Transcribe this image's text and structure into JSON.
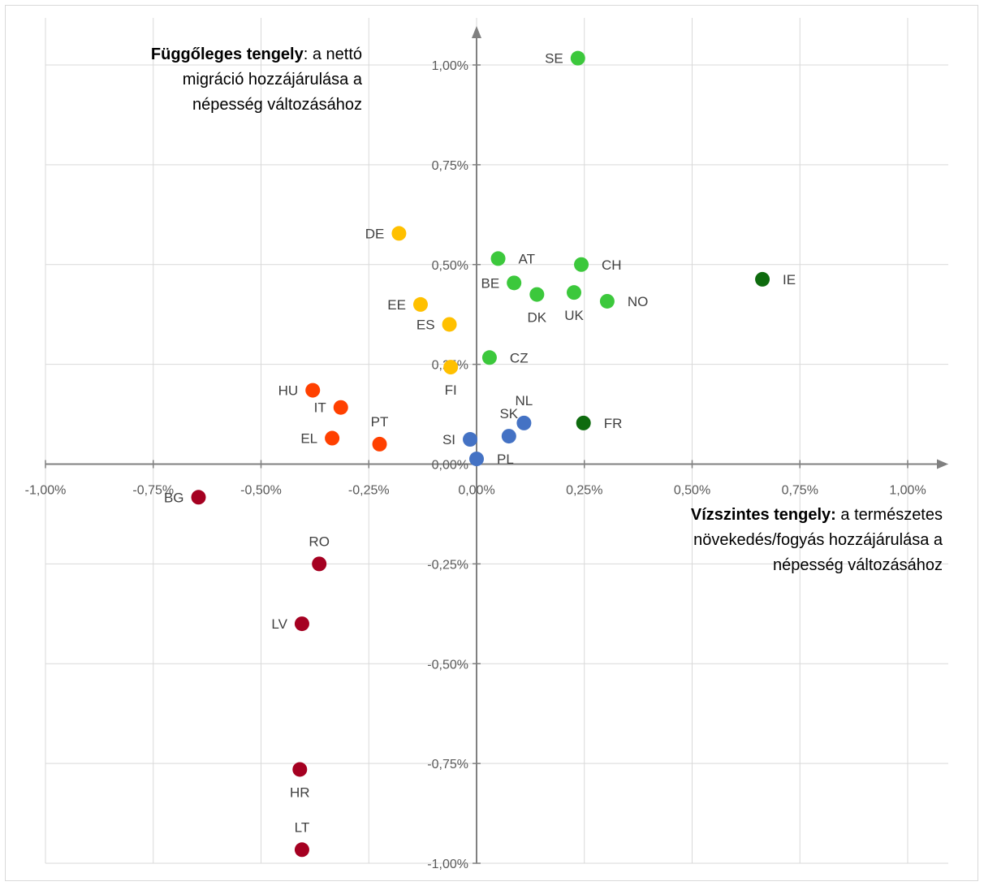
{
  "chart_data": {
    "type": "scatter",
    "xlim": [
      -1.0,
      1.0
    ],
    "ylim": [
      -1.0,
      1.0
    ],
    "grid": true,
    "x_ticks": [
      {
        "value": -1.0,
        "label": "-1,00%"
      },
      {
        "value": -0.75,
        "label": "-0,75%"
      },
      {
        "value": -0.5,
        "label": "-0,50%"
      },
      {
        "value": -0.25,
        "label": "-0,25%"
      },
      {
        "value": 0.0,
        "label": "0,00%"
      },
      {
        "value": 0.25,
        "label": "0,25%"
      },
      {
        "value": 0.5,
        "label": "0,50%"
      },
      {
        "value": 0.75,
        "label": "0,75%"
      },
      {
        "value": 1.0,
        "label": "1,00%"
      }
    ],
    "y_ticks": [
      {
        "value": 1.0,
        "label": "1,00%"
      },
      {
        "value": 0.75,
        "label": "0,75%"
      },
      {
        "value": 0.5,
        "label": "0,50%"
      },
      {
        "value": 0.25,
        "label": "0,25%"
      },
      {
        "value": 0.0,
        "label": "0,00%"
      },
      {
        "value": -0.25,
        "label": "-0,25%"
      },
      {
        "value": -0.5,
        "label": "-0,50%"
      },
      {
        "value": -0.75,
        "label": "-0,75%"
      },
      {
        "value": -1.0,
        "label": "-1,00%"
      }
    ],
    "annotations": {
      "y_axis": {
        "lines": [
          [
            {
              "text": "Függőleges tengely",
              "bold": true
            },
            {
              "text": ": a nettó",
              "bold": false
            }
          ],
          [
            {
              "text": "migráció hozzájárulása a",
              "bold": false
            }
          ],
          [
            {
              "text": "népesség változásához",
              "bold": false
            }
          ]
        ]
      },
      "x_axis": {
        "lines": [
          [
            {
              "text": "Vízszintes tengely:",
              "bold": true
            },
            {
              "text": " a természetes",
              "bold": false
            }
          ],
          [
            {
              "text": "növekedés/fogyás hozzájárulása a",
              "bold": false
            }
          ],
          [
            {
              "text": "népesség változásához",
              "bold": false
            }
          ]
        ]
      }
    },
    "points": [
      {
        "label": "SE",
        "x": 0.235,
        "y": 1.017,
        "color": "#3cc83c",
        "label_pos": "left"
      },
      {
        "label": "AT",
        "x": 0.05,
        "y": 0.515,
        "color": "#3cc83c",
        "label_pos": "right"
      },
      {
        "label": "CH",
        "x": 0.243,
        "y": 0.5,
        "color": "#3cc83c",
        "label_pos": "right"
      },
      {
        "label": "BE",
        "x": 0.087,
        "y": 0.454,
        "color": "#3cc83c",
        "label_pos": "left"
      },
      {
        "label": "DK",
        "x": 0.14,
        "y": 0.425,
        "color": "#3cc83c",
        "label_pos": "below"
      },
      {
        "label": "UK",
        "x": 0.226,
        "y": 0.43,
        "color": "#3cc83c",
        "label_pos": "below"
      },
      {
        "label": "NO",
        "x": 0.303,
        "y": 0.408,
        "color": "#3cc83c",
        "label_pos": "right"
      },
      {
        "label": "CZ",
        "x": 0.03,
        "y": 0.267,
        "color": "#3cc83c",
        "label_pos": "right"
      },
      {
        "label": "IE",
        "x": 0.663,
        "y": 0.463,
        "color": "#0e6b0e",
        "label_pos": "right"
      },
      {
        "label": "FR",
        "x": 0.248,
        "y": 0.103,
        "color": "#0e6b0e",
        "label_pos": "right"
      },
      {
        "label": "DE",
        "x": -0.18,
        "y": 0.578,
        "color": "#ffc000",
        "label_pos": "left"
      },
      {
        "label": "EE",
        "x": -0.13,
        "y": 0.4,
        "color": "#ffc000",
        "label_pos": "left"
      },
      {
        "label": "ES",
        "x": -0.063,
        "y": 0.35,
        "color": "#ffc000",
        "label_pos": "left"
      },
      {
        "label": "FI",
        "x": -0.06,
        "y": 0.243,
        "color": "#ffc000",
        "label_pos": "below"
      },
      {
        "label": "HU",
        "x": -0.38,
        "y": 0.185,
        "color": "#ff4000",
        "label_pos": "left"
      },
      {
        "label": "IT",
        "x": -0.315,
        "y": 0.142,
        "color": "#ff4000",
        "label_pos": "left"
      },
      {
        "label": "PT",
        "x": -0.225,
        "y": 0.05,
        "color": "#ff4000",
        "label_pos": "above"
      },
      {
        "label": "EL",
        "x": -0.335,
        "y": 0.065,
        "color": "#ff4000",
        "label_pos": "left"
      },
      {
        "label": "NL",
        "x": 0.11,
        "y": 0.103,
        "color": "#4472c4",
        "label_pos": "above"
      },
      {
        "label": "SK",
        "x": 0.075,
        "y": 0.07,
        "color": "#4472c4",
        "label_pos": "above"
      },
      {
        "label": "SI",
        "x": -0.015,
        "y": 0.062,
        "color": "#4472c4",
        "label_pos": "left"
      },
      {
        "label": "PL",
        "x": 0.0,
        "y": 0.013,
        "color": "#4472c4",
        "label_pos": "right"
      },
      {
        "label": "BG",
        "x": -0.645,
        "y": -0.083,
        "color": "#a50021",
        "label_pos": "left"
      },
      {
        "label": "RO",
        "x": -0.365,
        "y": -0.25,
        "color": "#a50021",
        "label_pos": "above"
      },
      {
        "label": "LV",
        "x": -0.405,
        "y": -0.4,
        "color": "#a50021",
        "label_pos": "left"
      },
      {
        "label": "HR",
        "x": -0.41,
        "y": -0.765,
        "color": "#a50021",
        "label_pos": "below"
      },
      {
        "label": "LT",
        "x": -0.405,
        "y": -0.966,
        "color": "#a50021",
        "label_pos": "above"
      }
    ]
  }
}
